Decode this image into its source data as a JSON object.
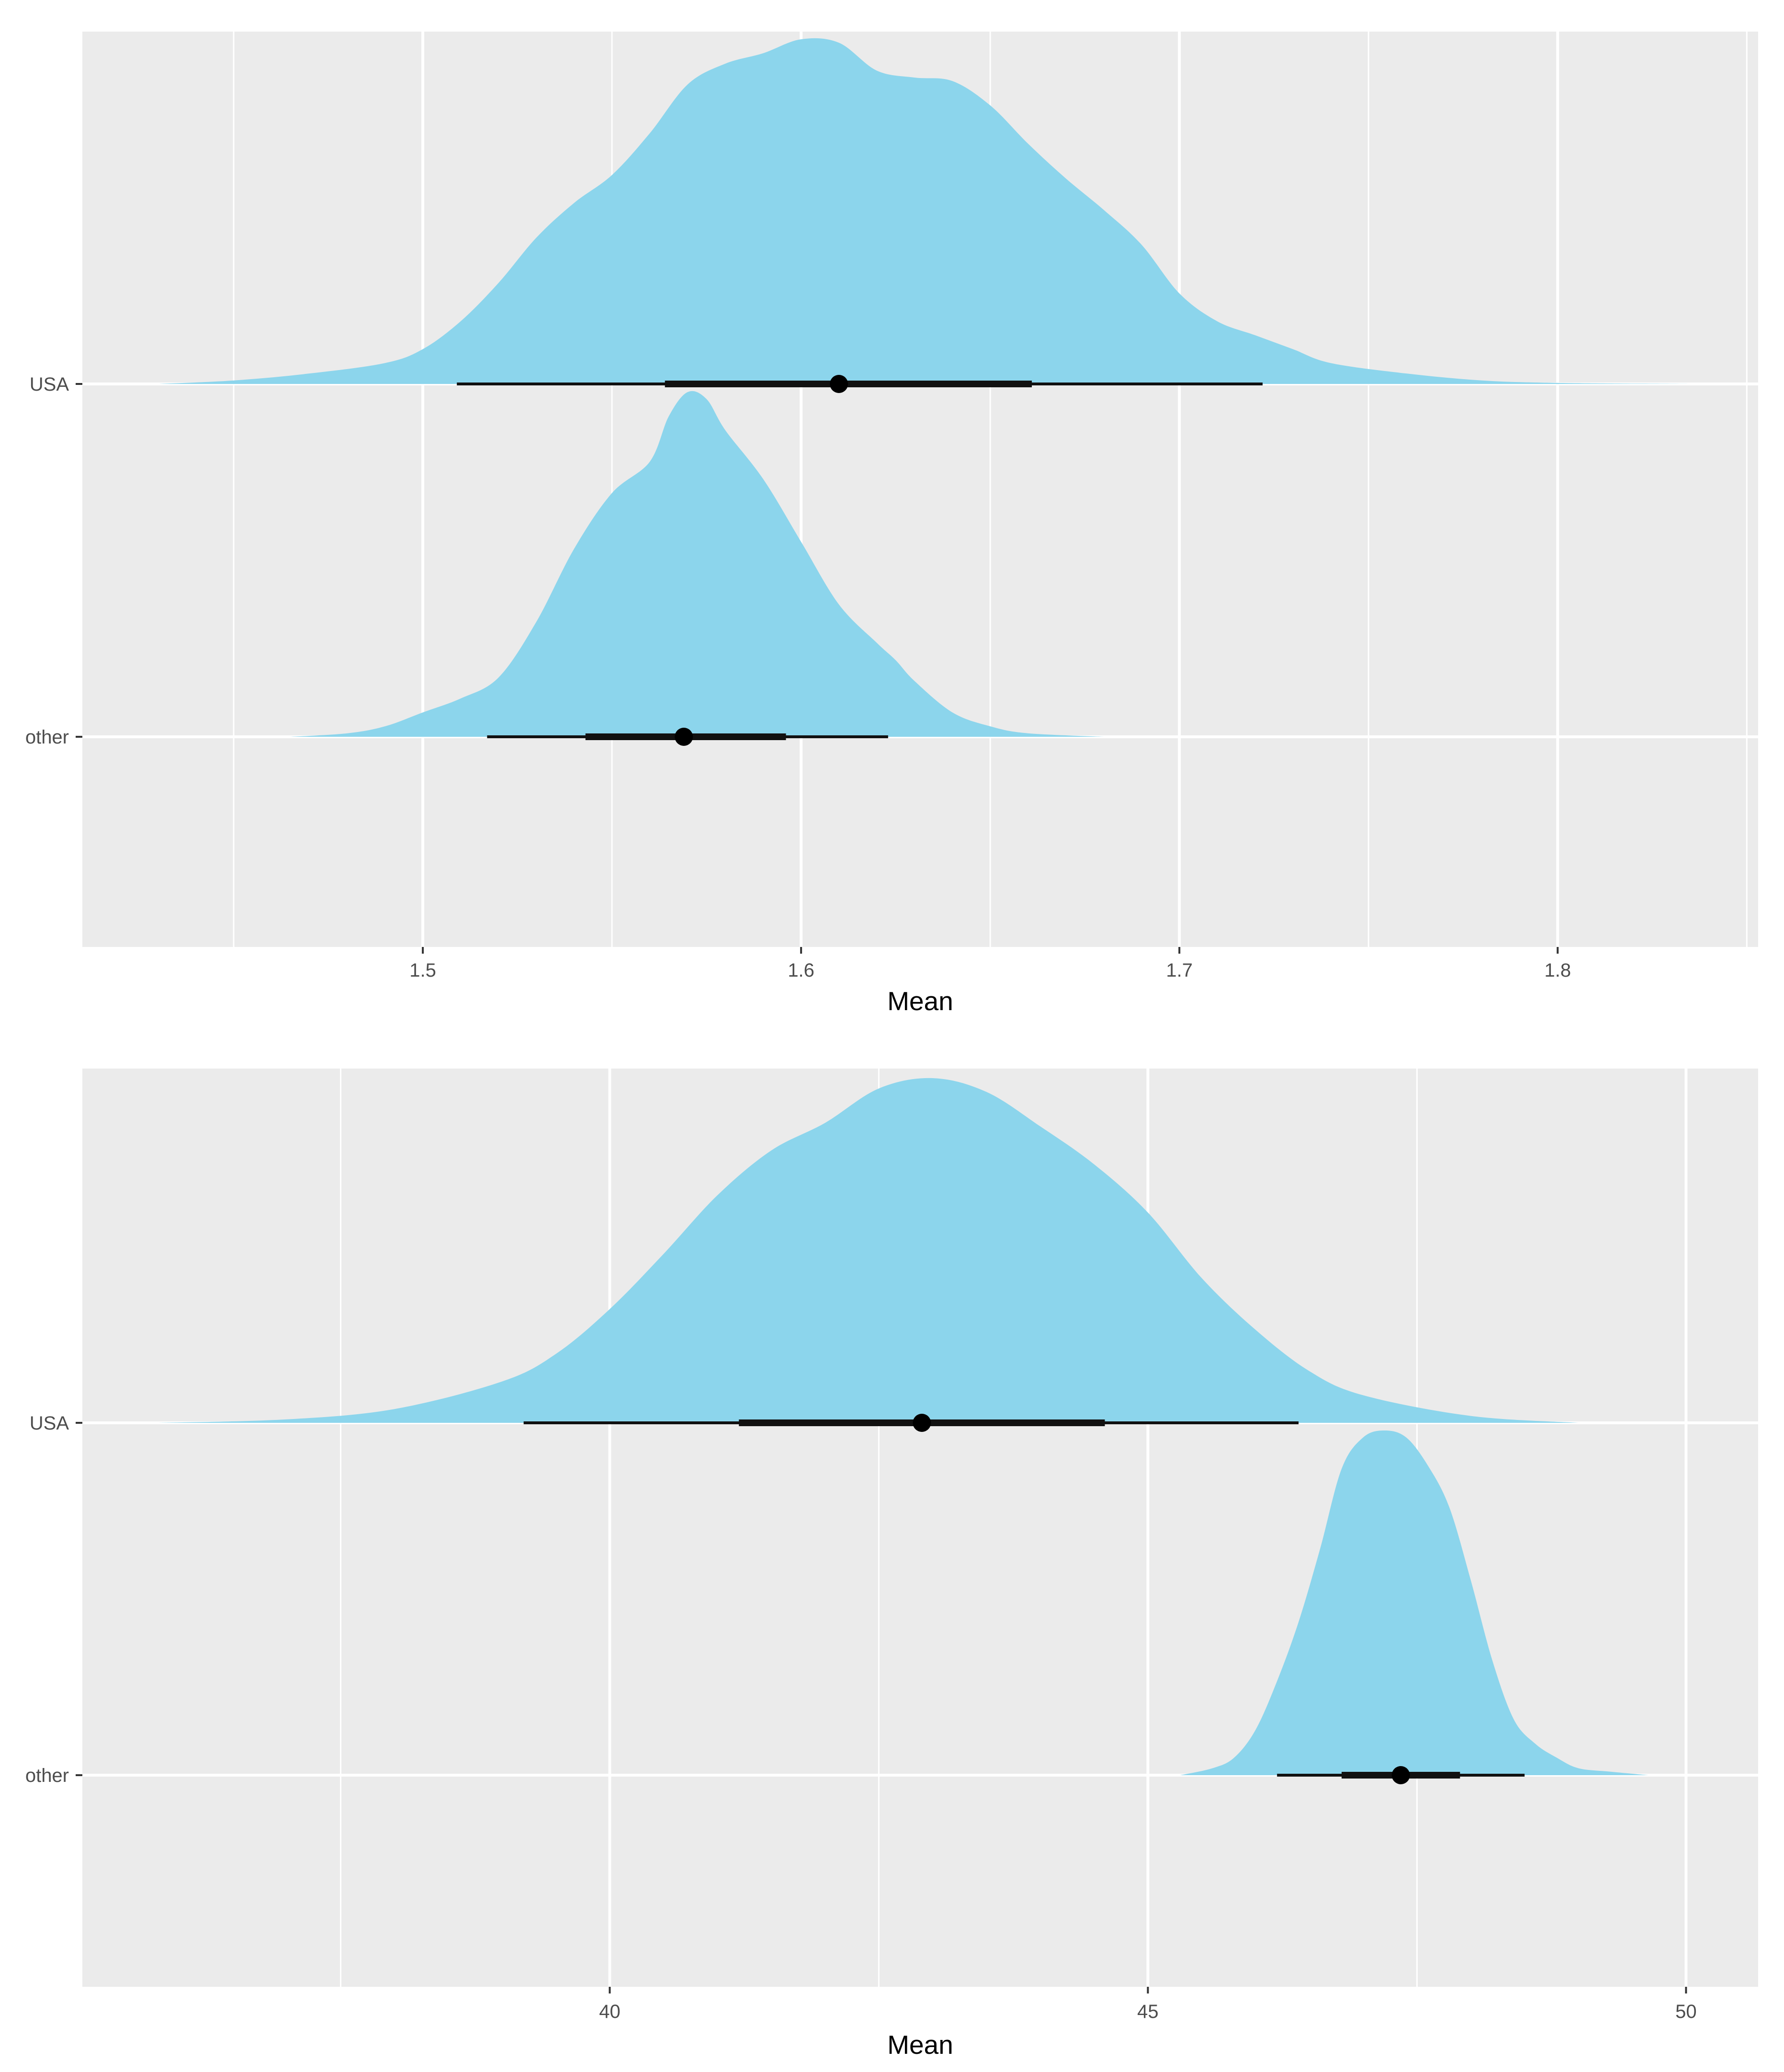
{
  "chart_data": [
    {
      "type": "halfeye",
      "xlabel": "Mean",
      "categories": [
        "USA",
        "other"
      ],
      "xlim": [
        1.41,
        1.853
      ],
      "x_ticks": [
        1.5,
        1.6,
        1.7,
        1.8
      ],
      "x_tick_labels": [
        "1.5",
        "1.6",
        "1.7",
        "1.8"
      ],
      "grid": true,
      "fill_color": "#87D3EB",
      "interval_color": "#111111",
      "series": [
        {
          "category": "USA",
          "point": 1.61,
          "interval_66": [
            1.564,
            1.661
          ],
          "interval_95": [
            1.509,
            1.722
          ],
          "density": {
            "x": [
              1.43,
              1.45,
              1.47,
              1.49,
              1.5,
              1.51,
              1.52,
              1.53,
              1.54,
              1.55,
              1.56,
              1.57,
              1.58,
              1.59,
              1.6,
              1.61,
              1.62,
              1.63,
              1.64,
              1.65,
              1.66,
              1.67,
              1.68,
              1.69,
              1.7,
              1.71,
              1.72,
              1.73,
              1.74,
              1.76,
              1.78,
              1.8,
              1.835
            ],
            "y": [
              0,
              0.01,
              0.03,
              0.06,
              0.1,
              0.18,
              0.29,
              0.42,
              0.52,
              0.6,
              0.72,
              0.86,
              0.92,
              0.95,
              0.99,
              0.98,
              0.9,
              0.88,
              0.87,
              0.8,
              0.69,
              0.59,
              0.5,
              0.4,
              0.26,
              0.18,
              0.14,
              0.1,
              0.06,
              0.03,
              0.01,
              0.003,
              0
            ]
          }
        },
        {
          "category": "other",
          "point": 1.569,
          "interval_66": [
            1.543,
            1.596
          ],
          "interval_95": [
            1.517,
            1.623
          ],
          "density": {
            "x": [
              1.465,
              1.48,
              1.49,
              1.5,
              1.51,
              1.52,
              1.53,
              1.54,
              1.55,
              1.56,
              1.565,
              1.57,
              1.575,
              1.58,
              1.59,
              1.6,
              1.61,
              1.62,
              1.625,
              1.63,
              1.64,
              1.65,
              1.66,
              1.68
            ],
            "y": [
              0,
              0.01,
              0.03,
              0.07,
              0.11,
              0.17,
              0.33,
              0.54,
              0.7,
              0.79,
              0.92,
              0.99,
              0.97,
              0.88,
              0.74,
              0.56,
              0.38,
              0.27,
              0.22,
              0.16,
              0.07,
              0.03,
              0.01,
              0
            ]
          }
        }
      ]
    },
    {
      "type": "halfeye",
      "xlabel": "Mean",
      "categories": [
        "USA",
        "other"
      ],
      "xlim": [
        35.1,
        50.67
      ],
      "x_ticks": [
        40,
        45,
        50
      ],
      "x_tick_labels": [
        "40",
        "45",
        "50"
      ],
      "grid": true,
      "fill_color": "#87D3EB",
      "interval_color": "#111111",
      "series": [
        {
          "category": "USA",
          "point": 42.9,
          "interval_66": [
            41.2,
            44.6
          ],
          "interval_95": [
            39.2,
            46.4
          ],
          "density": {
            "x": [
              35.8,
              37.0,
              38.0,
              39.0,
              39.5,
              40.0,
              40.5,
              41.0,
              41.5,
              42.0,
              42.5,
              43.0,
              43.5,
              44.0,
              44.5,
              45.0,
              45.5,
              46.0,
              46.5,
              47.0,
              48.0,
              49.0
            ],
            "y": [
              0,
              0.01,
              0.04,
              0.12,
              0.2,
              0.33,
              0.49,
              0.66,
              0.79,
              0.87,
              0.97,
              1.0,
              0.96,
              0.86,
              0.75,
              0.61,
              0.42,
              0.27,
              0.15,
              0.08,
              0.02,
              0
            ]
          }
        },
        {
          "category": "other",
          "point": 47.35,
          "interval_66": [
            46.8,
            47.9
          ],
          "interval_95": [
            46.2,
            48.5
          ],
          "density": {
            "x": [
              45.3,
              45.6,
              45.8,
              46.0,
              46.2,
              46.4,
              46.6,
              46.8,
              47.0,
              47.2,
              47.4,
              47.6,
              47.8,
              48.0,
              48.2,
              48.4,
              48.6,
              48.8,
              49.0,
              49.3,
              49.65
            ],
            "y": [
              0,
              0.02,
              0.05,
              0.13,
              0.27,
              0.44,
              0.65,
              0.88,
              0.97,
              0.99,
              0.97,
              0.89,
              0.77,
              0.56,
              0.33,
              0.16,
              0.09,
              0.05,
              0.02,
              0.01,
              0
            ]
          }
        }
      ]
    }
  ]
}
